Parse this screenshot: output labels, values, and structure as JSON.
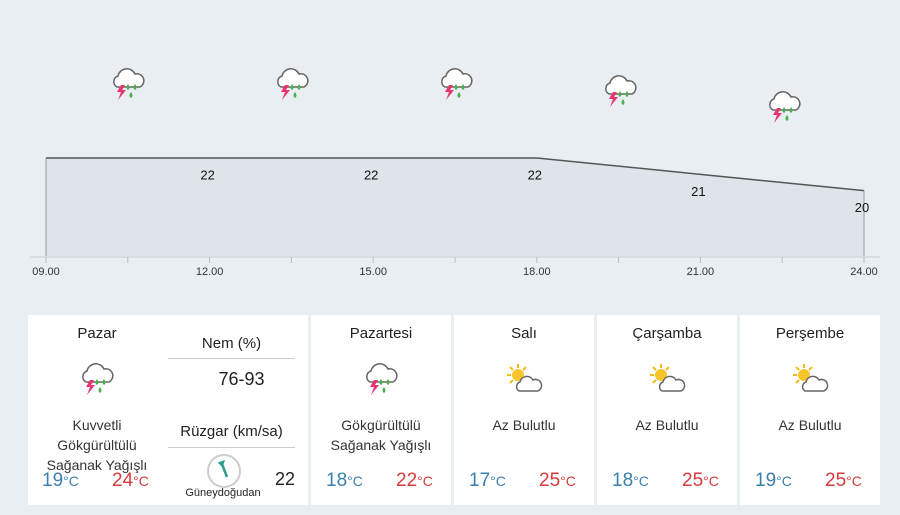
{
  "chart_data": {
    "type": "area",
    "x": [
      9,
      12,
      15,
      18,
      21,
      24
    ],
    "values": [
      22,
      22,
      22,
      22,
      21,
      20
    ],
    "xlim": [
      9,
      24
    ],
    "ylim": [
      16,
      28
    ],
    "xticks": [
      {
        "value": 9,
        "label": "09.00"
      },
      {
        "value": 12,
        "label": "12.00"
      },
      {
        "value": 15,
        "label": "15.00"
      },
      {
        "value": 18,
        "label": "18.00"
      },
      {
        "value": 21,
        "label": "21.00"
      },
      {
        "value": 24,
        "label": "24.00"
      }
    ],
    "color": "#dfe4ea",
    "line_color": "#555555"
  },
  "unit": "°C",
  "today": {
    "day": "Pazar",
    "icon": "storm",
    "condition": "Kuvvetli Gökgürültülü Sağanak Yağışlı",
    "low": 19,
    "high": 24,
    "humidity_label": "Nem (%)",
    "humidity": "76-93",
    "wind_label": "Rüzgar (km/sa)",
    "wind_speed": 22,
    "wind_direction": "Güneydoğudan"
  },
  "days": [
    {
      "day": "Pazartesi",
      "icon": "storm",
      "condition": "Gökgürültülü Sağanak Yağışlı",
      "low": 18,
      "high": 22
    },
    {
      "day": "Salı",
      "icon": "suncloud",
      "condition": "Az Bulutlu",
      "low": 17,
      "high": 25
    },
    {
      "day": "Çarşamba",
      "icon": "suncloud",
      "condition": "Az Bulutlu",
      "low": 18,
      "high": 25
    },
    {
      "day": "Perşembe",
      "icon": "suncloud",
      "condition": "Az Bulutlu",
      "low": 19,
      "high": 25
    }
  ]
}
